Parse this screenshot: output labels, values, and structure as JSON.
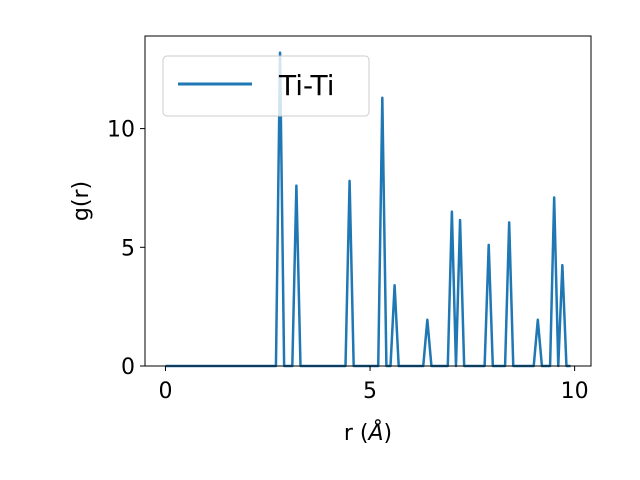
{
  "chart_data": {
    "type": "line",
    "xlabel": "r (",
    "xlabel_symbol": "Å",
    "xlabel_close": ")",
    "ylabel": "g(r)",
    "xlim": [
      -0.5,
      10.4
    ],
    "ylim": [
      0,
      13.9
    ],
    "xticks": [
      0,
      5,
      10
    ],
    "xtick_labels": [
      "0",
      "5",
      "10"
    ],
    "yticks": [
      0,
      5,
      10
    ],
    "ytick_labels": [
      "0",
      "5",
      "10"
    ],
    "grid": false,
    "legend_position": "top-left",
    "series": [
      {
        "name": "Ti-Ti",
        "color": "#1f77b4",
        "x": [
          0,
          2.7,
          2.8,
          2.9,
          3.1,
          3.2,
          3.3,
          4.4,
          4.5,
          4.6,
          5.2,
          5.3,
          5.4,
          5.5,
          5.6,
          5.7,
          6.3,
          6.4,
          6.5,
          6.9,
          7.0,
          7.1,
          7.2,
          7.3,
          7.8,
          7.9,
          8.0,
          8.3,
          8.4,
          8.5,
          9.0,
          9.1,
          9.2,
          9.4,
          9.5,
          9.6,
          9.7,
          9.8,
          9.9
        ],
        "y": [
          0,
          0,
          13.2,
          0,
          0,
          7.6,
          0,
          0,
          7.8,
          0,
          0,
          11.3,
          0,
          0,
          3.4,
          0,
          0,
          1.95,
          0,
          0,
          6.5,
          0,
          6.15,
          0,
          0,
          5.1,
          0,
          0,
          6.05,
          0,
          0,
          1.95,
          0,
          0,
          7.1,
          0,
          4.25,
          0,
          0
        ]
      }
    ]
  }
}
